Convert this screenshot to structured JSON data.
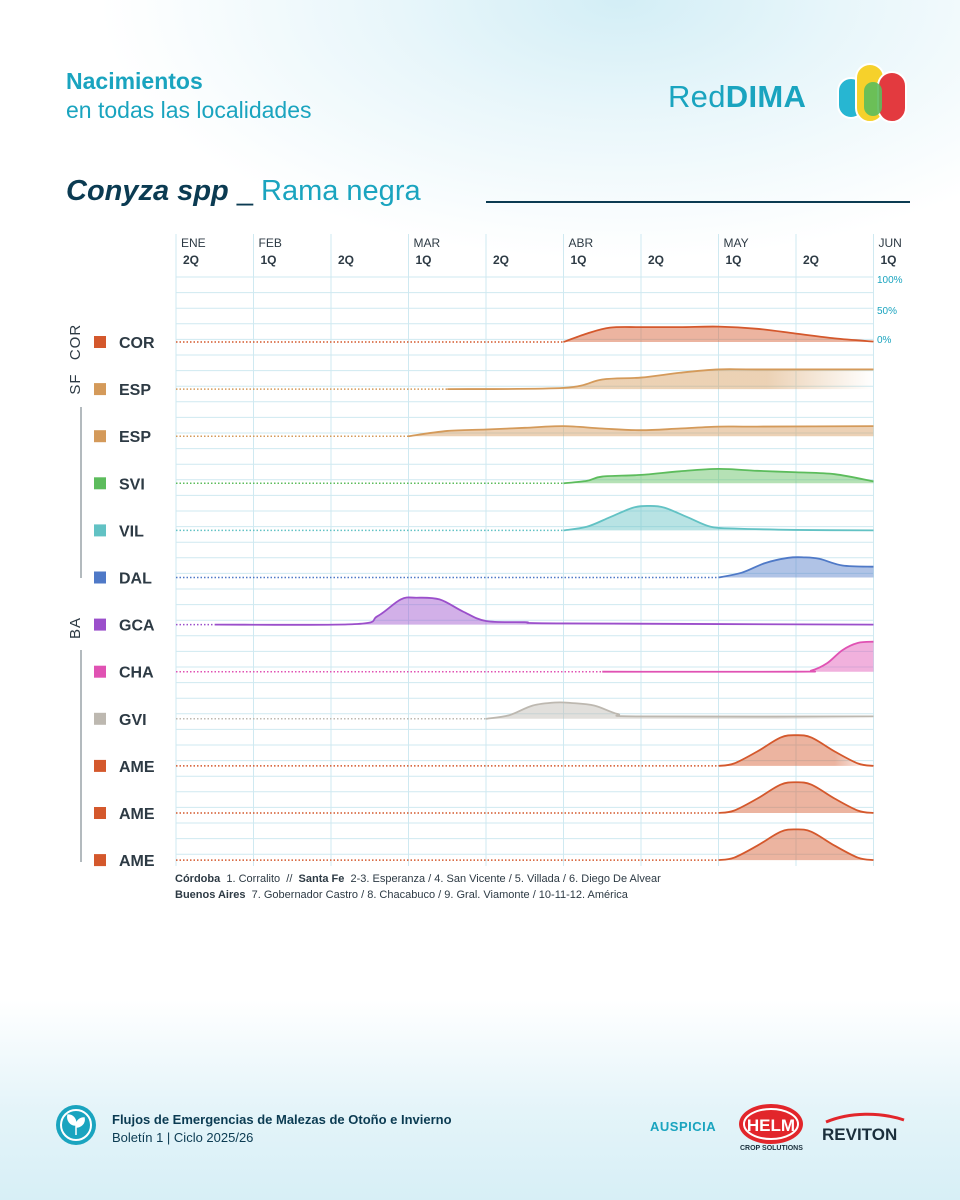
{
  "header": {
    "title": "Nacimientos",
    "subtitle": "en todas las localidades",
    "brand_light": "Red",
    "brand_bold": "DIMA"
  },
  "species": {
    "scientific": "Conyza spp",
    "separator": "_",
    "common": "Rama negra"
  },
  "chart_data": {
    "type": "area",
    "months": [
      {
        "label": "ENE",
        "pos": 0
      },
      {
        "label": "FEB",
        "pos": 1
      },
      {
        "label": "MAR",
        "pos": 3
      },
      {
        "label": "ABR",
        "pos": 5
      },
      {
        "label": "MAY",
        "pos": 7
      },
      {
        "label": "JUN",
        "pos": 9
      }
    ],
    "periods": [
      "2Q",
      "1Q",
      "2Q",
      "1Q",
      "2Q",
      "1Q",
      "2Q",
      "1Q",
      "2Q",
      "1Q"
    ],
    "scale_labels": [
      "100%",
      "50%",
      "0%"
    ],
    "group_labels": [
      "COR",
      "SF",
      "BA"
    ],
    "series": [
      {
        "name": "COR",
        "color": "#d4582c",
        "x": [
          5.0,
          5.3,
          5.6,
          6.0,
          6.5,
          7.0,
          7.5,
          8.0,
          8.5,
          9.0
        ],
        "y": [
          0,
          35,
          60,
          62,
          62,
          64,
          55,
          35,
          15,
          2
        ],
        "y_end": 2
      },
      {
        "name": "ESP",
        "color": "#d49a5a",
        "x": [
          3.5,
          5.0,
          5.5,
          6.0,
          6.5,
          7.0,
          7.5,
          9.0
        ],
        "y": [
          0,
          5,
          40,
          48,
          68,
          82,
          82,
          82
        ],
        "y_end": 82,
        "fade": true
      },
      {
        "name": "ESP",
        "color": "#d49a5a",
        "x": [
          3.0,
          3.5,
          4.0,
          4.5,
          5.0,
          5.5,
          6.0,
          6.5,
          7.0,
          7.5,
          9.0
        ],
        "y": [
          0,
          22,
          28,
          35,
          42,
          32,
          25,
          32,
          40,
          40,
          42
        ],
        "y_end": 42
      },
      {
        "name": "SVI",
        "color": "#5cbc5c",
        "x": [
          5.0,
          5.3,
          5.5,
          6.0,
          6.5,
          7.0,
          7.5,
          8.0,
          8.5,
          9.0
        ],
        "y": [
          0,
          10,
          28,
          35,
          50,
          60,
          52,
          46,
          38,
          8
        ],
        "y_end": 8
      },
      {
        "name": "VIL",
        "color": "#62c2c4",
        "x": [
          5.0,
          5.3,
          5.6,
          5.9,
          6.1,
          6.3,
          6.6,
          6.9,
          7.2,
          8.0,
          9.0
        ],
        "y": [
          0,
          15,
          55,
          95,
          102,
          95,
          55,
          15,
          8,
          2,
          0
        ],
        "y_end": 0
      },
      {
        "name": "DAL",
        "color": "#4f79c7",
        "x": [
          7.0,
          7.3,
          7.6,
          7.9,
          8.1,
          8.3,
          8.6,
          9.0
        ],
        "y": [
          0,
          20,
          60,
          82,
          84,
          78,
          50,
          45
        ],
        "y_end": 45
      },
      {
        "name": "GCA",
        "color": "#9b4fcb",
        "x": [
          0.5,
          2.3,
          2.6,
          2.9,
          3.1,
          3.4,
          3.7,
          4.0,
          4.5,
          5.0,
          9.0
        ],
        "y": [
          0,
          2,
          35,
          105,
          112,
          105,
          55,
          15,
          10,
          5,
          0
        ],
        "y_end": 0
      },
      {
        "name": "CHA",
        "color": "#e052b3",
        "x": [
          5.5,
          8.0,
          8.2,
          8.4,
          8.6,
          8.8,
          9.0
        ],
        "y": [
          0,
          0,
          5,
          35,
          90,
          120,
          125
        ],
        "y_end": 125
      },
      {
        "name": "GVI",
        "color": "#bdb8b0",
        "x": [
          4.0,
          4.3,
          4.6,
          4.9,
          5.1,
          5.4,
          5.7,
          6.0,
          9.0
        ],
        "y": [
          0,
          15,
          55,
          68,
          66,
          55,
          20,
          10,
          10
        ],
        "y_end": 10,
        "fade": true
      },
      {
        "name": "AME",
        "color": "#d4582c",
        "x": [
          7.0,
          7.2,
          7.5,
          7.8,
          8.0,
          8.2,
          8.5,
          8.8,
          9.0
        ],
        "y": [
          0,
          10,
          60,
          118,
          128,
          118,
          60,
          10,
          0
        ],
        "y_end": 0,
        "fade": true
      },
      {
        "name": "AME",
        "color": "#d4582c",
        "x": [
          7.0,
          7.2,
          7.5,
          7.8,
          8.0,
          8.2,
          8.5,
          8.8,
          9.0
        ],
        "y": [
          0,
          10,
          60,
          118,
          128,
          118,
          60,
          10,
          0
        ],
        "y_end": 0
      },
      {
        "name": "AME",
        "color": "#d4582c",
        "x": [
          7.0,
          7.2,
          7.5,
          7.8,
          8.0,
          8.2,
          8.5,
          8.8,
          9.0
        ],
        "y": [
          0,
          10,
          60,
          118,
          128,
          118,
          60,
          10,
          0
        ],
        "y_end": 0
      }
    ]
  },
  "legend": {
    "line1_group1": "Córdoba",
    "line1_text1": "1. Corralito",
    "line1_divider": "//",
    "line1_group2": "Santa Fe",
    "line1_text2": "2-3. Esperanza / 4. San Vicente / 5. Villada / 6. Diego De Alvear",
    "line2_group": "Buenos Aires",
    "line2_text": "7. Gobernador Castro / 8. Chacabuco / 9. Gral. Viamonte / 10-11-12. América"
  },
  "footer": {
    "title": "Flujos de Emergencias de Malezas de Otoño e Invierno",
    "subtitle": "Boletín 1 | Ciclo 2025/26",
    "sponsor_label": "AUSPICIA",
    "helm_logo": "HELM",
    "helm_sub": "CROP SOLUTIONS",
    "reviton_logo": "REVITON"
  }
}
